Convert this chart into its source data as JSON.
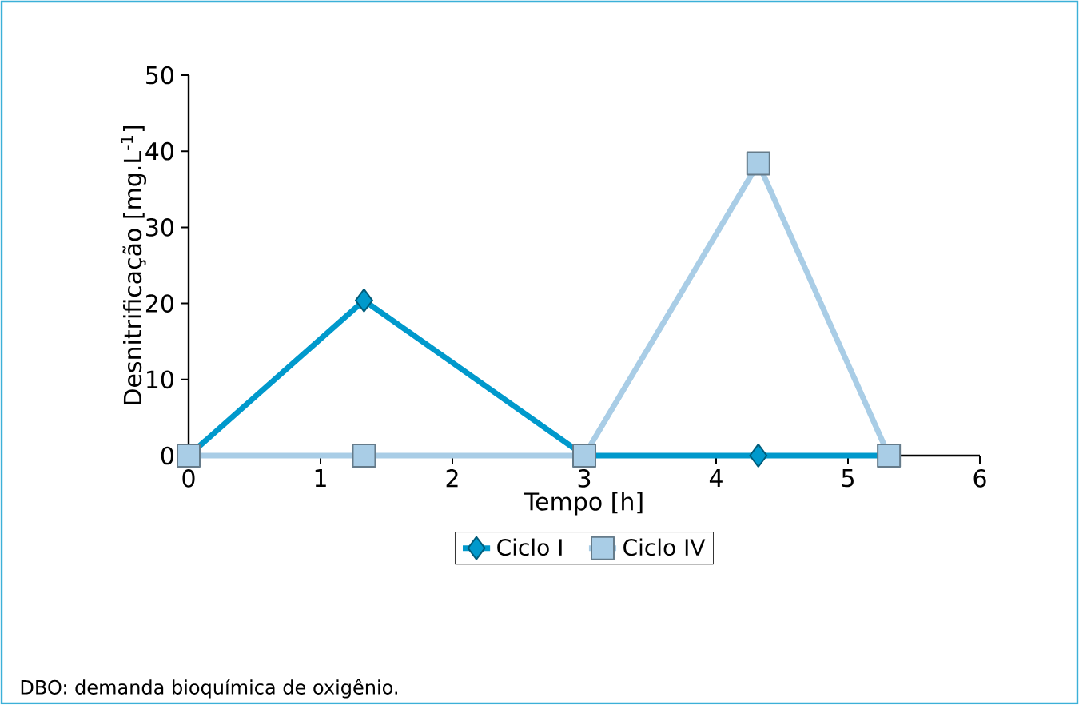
{
  "chart_data": {
    "type": "line",
    "xlabel": "Tempo [h]",
    "ylabel": "Desnitrificação [mg.L$^{-1}$]",
    "xlim": [
      0,
      6
    ],
    "xticks": [
      0,
      1,
      2,
      3,
      4,
      5,
      6
    ],
    "ylim": [
      0,
      50
    ],
    "yticks": [
      0,
      10,
      20,
      30,
      40,
      50
    ],
    "grid": false,
    "legend": "bottom",
    "series": [
      {
        "name": "Ciclo I",
        "color": "#0099cc",
        "marker": "diamond",
        "x": [
          0,
          1.33,
          3,
          4.32,
          5.31
        ],
        "values": [
          0,
          20.4,
          0,
          0,
          0
        ]
      },
      {
        "name": "Ciclo IV",
        "color": "#a9cde6",
        "marker": "square",
        "x": [
          0,
          1.33,
          3,
          4.32,
          5.31
        ],
        "values": [
          0,
          0,
          0,
          38.4,
          0
        ]
      }
    ],
    "annotations": [
      "DBO: demanda bioquímica de oxigênio."
    ]
  }
}
